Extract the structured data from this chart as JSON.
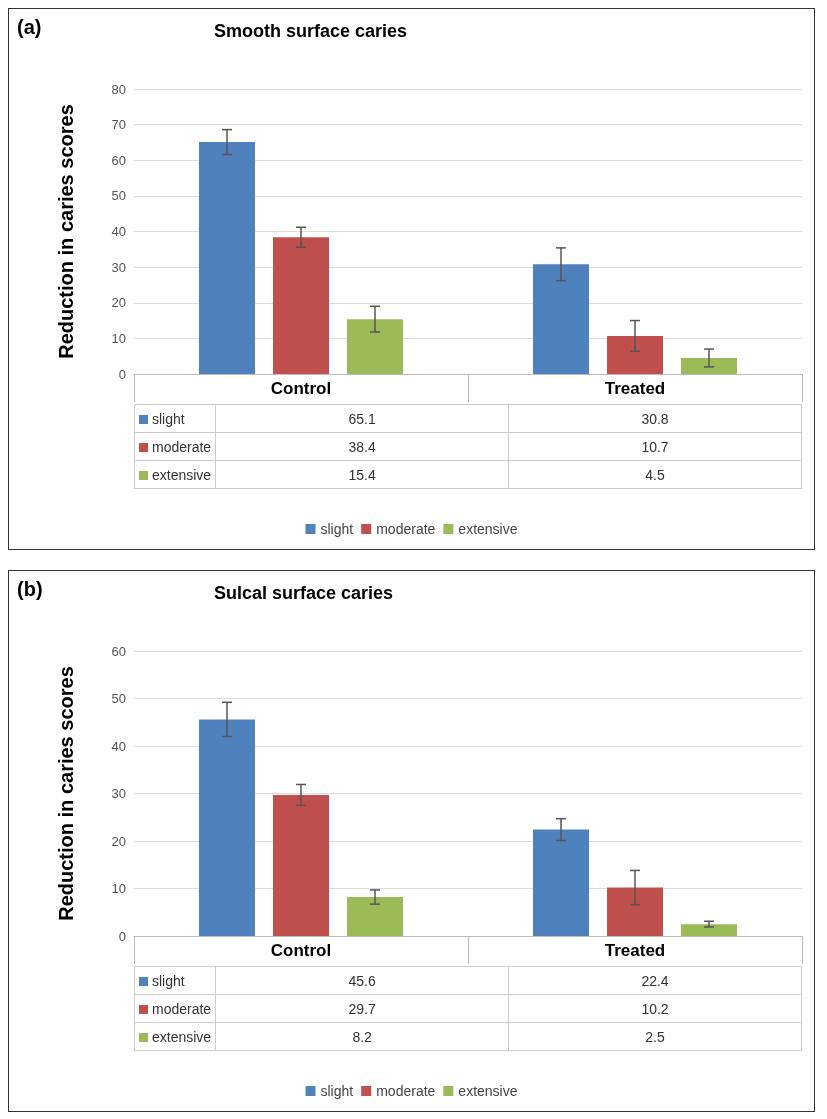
{
  "chart_data": [
    {
      "type": "bar",
      "title": "Smooth surface caries",
      "ylabel": "Reduction in caries scores",
      "annotations": [
        "(a)"
      ],
      "categories": [
        "Control",
        "Treated"
      ],
      "series": [
        {
          "name": "slight",
          "color": "#4f81bd",
          "values": [
            65.1,
            30.8
          ],
          "errors": [
            3.5,
            4.6
          ]
        },
        {
          "name": "moderate",
          "color": "#c0504d",
          "values": [
            38.4,
            10.7
          ],
          "errors": [
            2.8,
            4.3
          ]
        },
        {
          "name": "extensive",
          "color": "#9bbb59",
          "values": [
            15.4,
            4.5
          ],
          "errors": [
            3.6,
            2.5
          ]
        }
      ],
      "ylim": [
        0,
        80
      ],
      "yticks": [
        0,
        10,
        20,
        30,
        40,
        50,
        60,
        70,
        80
      ],
      "grid": "y",
      "legend": "bottom",
      "data_labels": true
    },
    {
      "type": "bar",
      "title": "Sulcal surface caries",
      "ylabel": "Reduction in caries scores",
      "annotations": [
        "(b)"
      ],
      "categories": [
        "Control",
        "Treated"
      ],
      "series": [
        {
          "name": "slight",
          "color": "#4f81bd",
          "values": [
            45.6,
            22.4
          ],
          "errors": [
            3.6,
            2.3
          ]
        },
        {
          "name": "moderate",
          "color": "#c0504d",
          "values": [
            29.7,
            10.2
          ],
          "errors": [
            2.2,
            3.6
          ]
        },
        {
          "name": "extensive",
          "color": "#9bbb59",
          "values": [
            8.2,
            2.5
          ],
          "errors": [
            1.5,
            0.6
          ]
        }
      ],
      "ylim": [
        0,
        60
      ],
      "yticks": [
        0,
        10,
        20,
        30,
        40,
        50,
        60
      ],
      "grid": "y",
      "legend": "bottom",
      "data_labels": true
    }
  ]
}
